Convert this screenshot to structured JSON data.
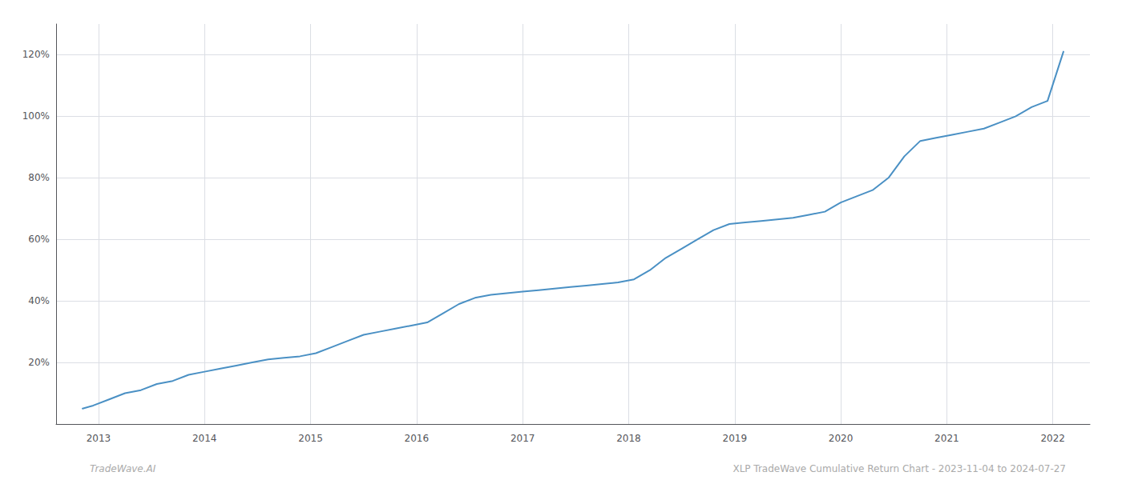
{
  "chart_data": {
    "type": "line",
    "annotations": [
      "TradeWave.AI",
      "XLP TradeWave Cumulative Return Chart - 2023-11-04 to 2024-07-27"
    ],
    "x": [
      2012.85,
      2012.95,
      2013.1,
      2013.25,
      2013.4,
      2013.55,
      2013.7,
      2013.85,
      2014.0,
      2014.15,
      2014.3,
      2014.45,
      2014.6,
      2014.75,
      2014.9,
      2015.05,
      2015.2,
      2015.35,
      2015.5,
      2015.65,
      2015.8,
      2015.95,
      2016.1,
      2016.25,
      2016.4,
      2016.55,
      2016.7,
      2016.85,
      2017.0,
      2017.15,
      2017.3,
      2017.45,
      2017.6,
      2017.75,
      2017.9,
      2018.05,
      2018.2,
      2018.35,
      2018.5,
      2018.65,
      2018.8,
      2018.95,
      2019.1,
      2019.25,
      2019.4,
      2019.55,
      2019.7,
      2019.85,
      2020.0,
      2020.15,
      2020.3,
      2020.45,
      2020.6,
      2020.75,
      2020.9,
      2021.05,
      2021.2,
      2021.35,
      2021.5,
      2021.65,
      2021.8,
      2021.95,
      2022.1
    ],
    "values": [
      5,
      6,
      8,
      10,
      11,
      13,
      14,
      16,
      17,
      18,
      19,
      20,
      21,
      21.5,
      22,
      23,
      25,
      27,
      29,
      30,
      31,
      32,
      33,
      36,
      39,
      41,
      42,
      42.5,
      43,
      43.5,
      44,
      44.5,
      45,
      45.5,
      46,
      47,
      50,
      54,
      57,
      60,
      63,
      65,
      65.5,
      66,
      66.5,
      67,
      68,
      69,
      72,
      74,
      76,
      80,
      87,
      92,
      93,
      94,
      95,
      96,
      98,
      100,
      103,
      105,
      121
    ],
    "color": "#4a90c4",
    "xlim": [
      2012.6,
      2022.35
    ],
    "xticks": [
      2013,
      2014,
      2015,
      2016,
      2017,
      2018,
      2019,
      2020,
      2021,
      2022
    ],
    "ylim": [
      0,
      130
    ],
    "yticks": [
      {
        "value": 20,
        "label": "20%"
      },
      {
        "value": 40,
        "label": "40%"
      },
      {
        "value": 60,
        "label": "60%"
      },
      {
        "value": 80,
        "label": "80%"
      },
      {
        "value": 100,
        "label": "100%"
      },
      {
        "value": 120,
        "label": "120%"
      }
    ],
    "grid": true
  }
}
